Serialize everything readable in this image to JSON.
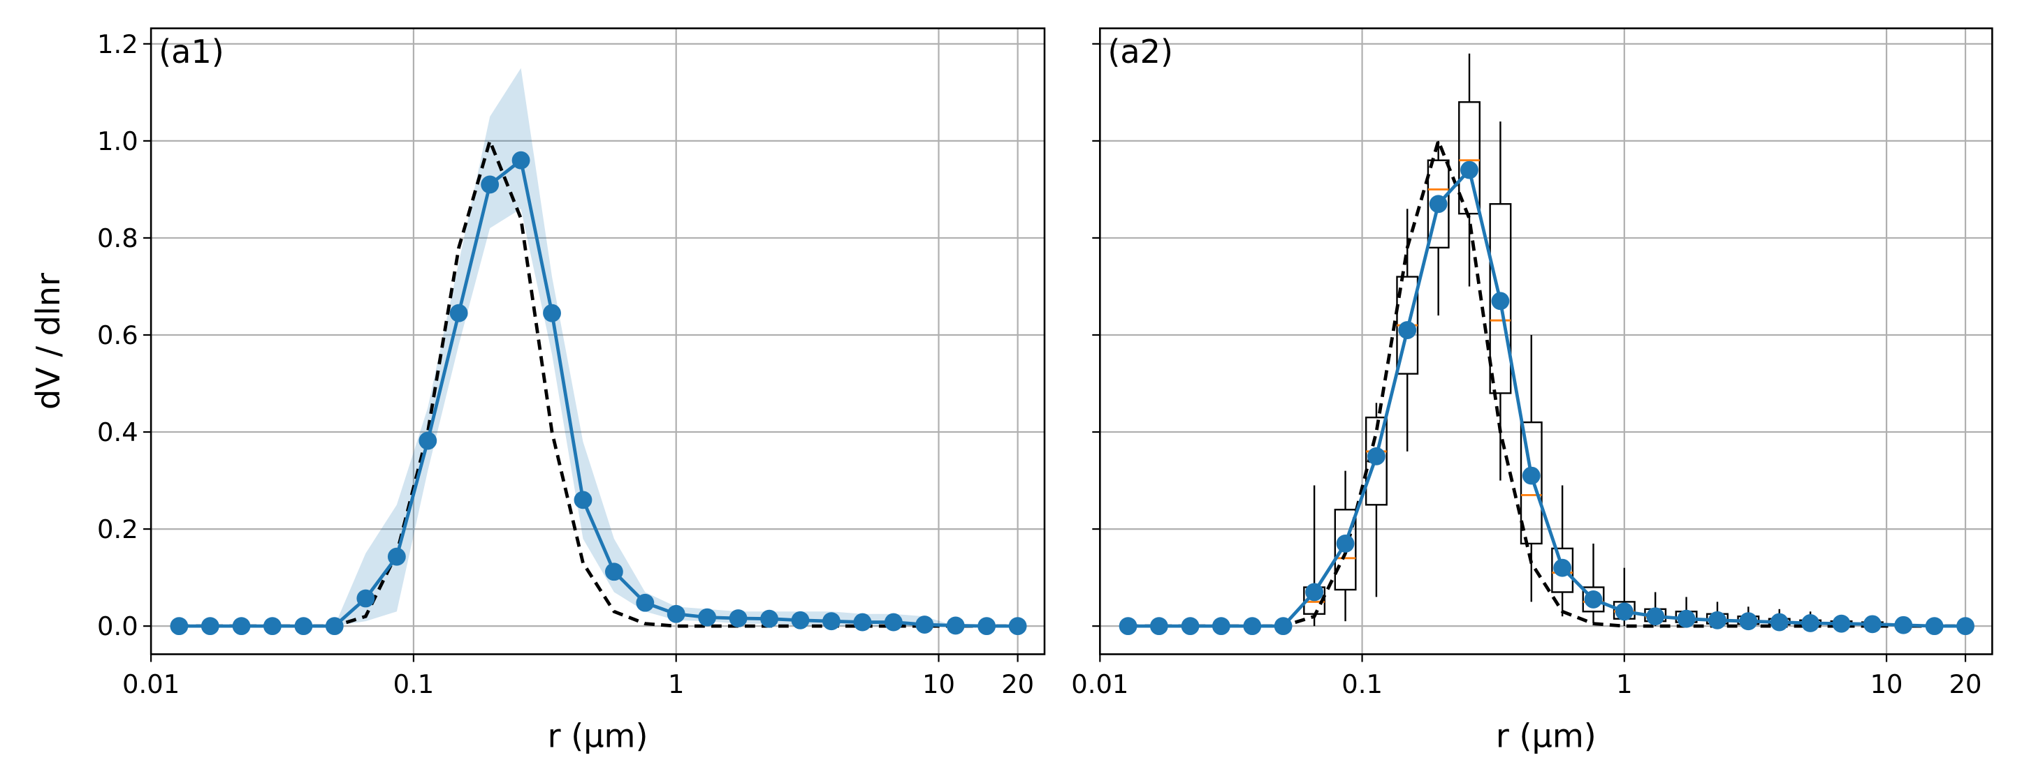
{
  "chart_data": [
    {
      "type": "line",
      "annotation": "(a1)",
      "xlabel": "r (μm)",
      "ylabel": "dV / dlnr",
      "xscale": "log",
      "grid": true,
      "xlim": [
        0.01,
        25.3
      ],
      "xticks": [
        0.01,
        0.1,
        1,
        10,
        20
      ],
      "ylim": [
        -0.058,
        1.232
      ],
      "yticks": [
        {
          "value": 0,
          "label": "0.0"
        },
        {
          "value": 0.2,
          "label": "0.2"
        },
        {
          "value": 0.4,
          "label": "0.4"
        },
        {
          "value": 0.6,
          "label": "0.6"
        },
        {
          "value": 0.8,
          "label": "0.8"
        },
        {
          "value": 1,
          "label": "1.0"
        },
        {
          "value": 1.2,
          "label": "1.2"
        }
      ],
      "x": [
        0.0128,
        0.0168,
        0.0221,
        0.029,
        0.0381,
        0.05,
        0.0657,
        0.0863,
        0.1133,
        0.1487,
        0.1953,
        0.2564,
        0.3367,
        0.442,
        0.5803,
        0.7619,
        1.0,
        1.313,
        1.724,
        2.264,
        2.972,
        3.903,
        5.125,
        6.729,
        8.836,
        11.6,
        15.23,
        20.0
      ],
      "band": {
        "color": "#1f77b4",
        "upper": [
          0,
          0,
          0,
          0,
          0,
          0,
          0.15,
          0.25,
          0.45,
          0.75,
          1.05,
          1.15,
          0.72,
          0.38,
          0.18,
          0.07,
          0.04,
          0.035,
          0.03,
          0.03,
          0.03,
          0.03,
          0.025,
          0.025,
          0.02,
          0,
          0,
          0
        ],
        "lower": [
          0,
          0,
          0,
          0,
          0,
          0,
          0.01,
          0.03,
          0.32,
          0.58,
          0.82,
          0.86,
          0.56,
          0.18,
          0.07,
          0.03,
          0.012,
          0.01,
          0.005,
          0.005,
          0,
          0,
          0,
          0,
          0,
          0,
          0,
          0
        ]
      },
      "series": [
        {
          "color": "#000000",
          "style": "dashed",
          "values": [
            0,
            0,
            0,
            0,
            0,
            0,
            0.02,
            0.15,
            0.4,
            0.78,
            1.0,
            0.84,
            0.4,
            0.13,
            0.03,
            0.005,
            0,
            0,
            0,
            0,
            0,
            0,
            0,
            0,
            0,
            0,
            0,
            0
          ]
        },
        {
          "color": "#1f77b4",
          "style": "solid",
          "markers": true,
          "values": [
            0,
            0,
            0,
            0,
            0,
            0,
            0.057,
            0.143,
            0.382,
            0.645,
            0.91,
            0.96,
            0.645,
            0.26,
            0.112,
            0.048,
            0.025,
            0.018,
            0.016,
            0.015,
            0.012,
            0.01,
            0.008,
            0.008,
            0.003,
            0.001,
            0,
            0
          ]
        }
      ]
    },
    {
      "type": "line",
      "annotation": "(a2)",
      "xlabel": "r (μm)",
      "xscale": "log",
      "grid": true,
      "xlim": [
        0.01,
        25.3
      ],
      "xticks": [
        0.01,
        0.1,
        1,
        10,
        20
      ],
      "ylim": [
        -0.058,
        1.232
      ],
      "yticks": [
        0,
        0.2,
        0.4,
        0.6,
        0.8,
        1,
        1.2
      ],
      "x": [
        0.0128,
        0.0168,
        0.0221,
        0.029,
        0.0381,
        0.05,
        0.0657,
        0.0863,
        0.1133,
        0.1487,
        0.1953,
        0.2564,
        0.3367,
        0.442,
        0.5803,
        0.7619,
        1.0,
        1.313,
        1.724,
        2.264,
        2.972,
        3.903,
        5.125,
        6.729,
        8.836,
        11.6,
        15.23,
        20.0
      ],
      "boxes": [
        {
          "x": 0.0657,
          "low": 0,
          "q1": 0.025,
          "median": 0.05,
          "q3": 0.08,
          "high": 0.29
        },
        {
          "x": 0.0863,
          "low": 0.01,
          "q1": 0.075,
          "median": 0.14,
          "q3": 0.24,
          "high": 0.32
        },
        {
          "x": 0.1133,
          "low": 0.06,
          "q1": 0.25,
          "median": 0.36,
          "q3": 0.43,
          "high": 0.46
        },
        {
          "x": 0.1487,
          "low": 0.36,
          "q1": 0.52,
          "median": 0.62,
          "q3": 0.72,
          "high": 0.86
        },
        {
          "x": 0.1953,
          "low": 0.64,
          "q1": 0.78,
          "median": 0.9,
          "q3": 0.96,
          "high": 1.0
        },
        {
          "x": 0.2564,
          "low": 0.7,
          "q1": 0.85,
          "median": 0.96,
          "q3": 1.08,
          "high": 1.18
        },
        {
          "x": 0.3367,
          "low": 0.3,
          "q1": 0.48,
          "median": 0.63,
          "q3": 0.87,
          "high": 1.04
        },
        {
          "x": 0.442,
          "low": 0.05,
          "q1": 0.17,
          "median": 0.27,
          "q3": 0.42,
          "high": 0.6
        },
        {
          "x": 0.5803,
          "low": 0.02,
          "q1": 0.07,
          "median": 0.11,
          "q3": 0.16,
          "high": 0.29
        },
        {
          "x": 0.7619,
          "low": 0.005,
          "q1": 0.03,
          "median": 0.05,
          "q3": 0.08,
          "high": 0.17
        },
        {
          "x": 1.0,
          "low": 0,
          "q1": 0.015,
          "median": 0.03,
          "q3": 0.05,
          "high": 0.12
        },
        {
          "x": 1.313,
          "low": 0,
          "q1": 0.01,
          "median": 0.02,
          "q3": 0.035,
          "high": 0.07
        },
        {
          "x": 1.724,
          "low": 0,
          "q1": 0.008,
          "median": 0.015,
          "q3": 0.03,
          "high": 0.06
        },
        {
          "x": 2.264,
          "low": 0,
          "q1": 0.005,
          "median": 0.012,
          "q3": 0.025,
          "high": 0.05
        },
        {
          "x": 2.972,
          "low": 0,
          "q1": 0.004,
          "median": 0.01,
          "q3": 0.02,
          "high": 0.04
        },
        {
          "x": 3.903,
          "low": 0,
          "q1": 0.003,
          "median": 0.008,
          "q3": 0.015,
          "high": 0.035
        },
        {
          "x": 5.125,
          "low": 0,
          "q1": 0.002,
          "median": 0.006,
          "q3": 0.012,
          "high": 0.03
        },
        {
          "x": 6.729,
          "low": 0,
          "q1": 0.002,
          "median": 0.005,
          "q3": 0.01,
          "high": 0.02
        },
        {
          "x": 8.836,
          "low": 0,
          "q1": 0.001,
          "median": 0.004,
          "q3": 0.008,
          "high": 0.015
        }
      ],
      "box_color": "#000000",
      "median_color": "#ff7f0e",
      "series": [
        {
          "color": "#000000",
          "style": "dashed",
          "values": [
            0,
            0,
            0,
            0,
            0,
            0,
            0.02,
            0.15,
            0.4,
            0.78,
            1.0,
            0.84,
            0.4,
            0.13,
            0.03,
            0.005,
            0,
            0,
            0,
            0,
            0,
            0,
            0,
            0,
            0,
            0,
            0,
            0
          ]
        },
        {
          "color": "#1f77b4",
          "style": "solid",
          "markers": true,
          "values": [
            0,
            0,
            0,
            0,
            0,
            0,
            0.07,
            0.17,
            0.35,
            0.61,
            0.87,
            0.94,
            0.67,
            0.31,
            0.12,
            0.055,
            0.03,
            0.02,
            0.015,
            0.012,
            0.01,
            0.008,
            0.006,
            0.005,
            0.004,
            0.002,
            0,
            0
          ]
        }
      ]
    }
  ]
}
